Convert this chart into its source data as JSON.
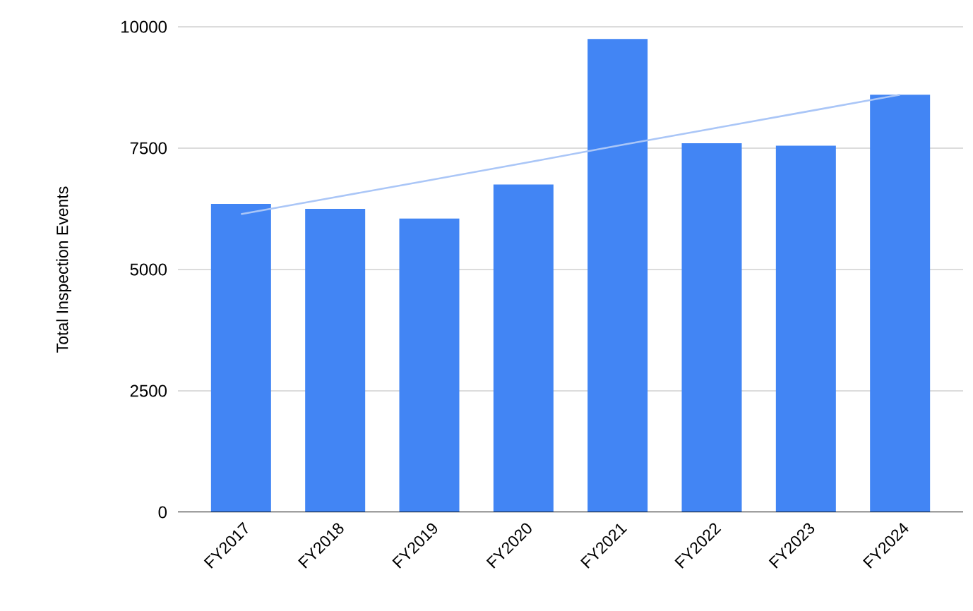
{
  "chart_data": {
    "type": "bar",
    "ylabel": "Total Inspection Events",
    "categories": [
      "FY2017",
      "FY2018",
      "FY2019",
      "FY2020",
      "FY2021",
      "FY2022",
      "FY2023",
      "FY2024"
    ],
    "series": [
      {
        "color": "#4285f4",
        "values": [
          6350,
          6250,
          6050,
          6750,
          9750,
          7600,
          7550,
          8600
        ]
      },
      {
        "type": "line",
        "color": "#aac6f7",
        "values": [
          6140,
          6490,
          6840,
          7190,
          7550,
          7900,
          8250,
          8600
        ]
      }
    ],
    "ylim": [
      0,
      10000
    ],
    "yticks": [
      0,
      2500,
      5000,
      7500,
      10000
    ],
    "grid": "y"
  }
}
